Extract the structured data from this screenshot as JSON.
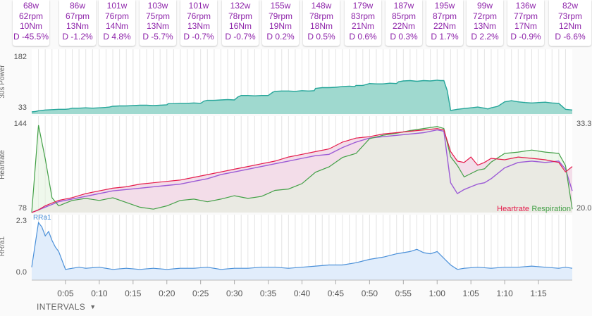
{
  "intervals": [
    {
      "power": "68w",
      "cadence": "62rpm",
      "torque": "10Nm",
      "decoupling": "D -45.5%"
    },
    {
      "power": "86w",
      "cadence": "67rpm",
      "torque": "13Nm",
      "decoupling": "D -1.2%"
    },
    {
      "power": "101w",
      "cadence": "76rpm",
      "torque": "14Nm",
      "decoupling": "D 4.8%"
    },
    {
      "power": "103w",
      "cadence": "75rpm",
      "torque": "13Nm",
      "decoupling": "D -5.7%"
    },
    {
      "power": "101w",
      "cadence": "76rpm",
      "torque": "13Nm",
      "decoupling": "D -0.7%"
    },
    {
      "power": "132w",
      "cadence": "78rpm",
      "torque": "16Nm",
      "decoupling": "D -0.7%"
    },
    {
      "power": "155w",
      "cadence": "79rpm",
      "torque": "19Nm",
      "decoupling": "D 0.2%"
    },
    {
      "power": "148w",
      "cadence": "78rpm",
      "torque": "18Nm",
      "decoupling": "D 0.5%"
    },
    {
      "power": "179w",
      "cadence": "83rpm",
      "torque": "21Nm",
      "decoupling": "D 0.6%"
    },
    {
      "power": "187w",
      "cadence": "85rpm",
      "torque": "22Nm",
      "decoupling": "D 0.3%"
    },
    {
      "power": "195w",
      "cadence": "87rpm",
      "torque": "22Nm",
      "decoupling": "D 1.7%"
    },
    {
      "power": "99w",
      "cadence": "72rpm",
      "torque": "13Nm",
      "decoupling": "D 2.2%"
    },
    {
      "power": "136w",
      "cadence": "77rpm",
      "torque": "17Nm",
      "decoupling": "D -0.9%"
    },
    {
      "power": "82w",
      "cadence": "73rpm",
      "torque": "12Nm",
      "decoupling": "D -6.6%"
    }
  ],
  "intervals_button": {
    "label": "INTERVALS"
  },
  "colors": {
    "card_text": "#8e24aa",
    "power_fill": "#80cbc4",
    "power_line": "#26a69a",
    "heartrate": "#e5194a",
    "respiration": "#43a047",
    "rr": "#4a90d9"
  },
  "chart_data": [
    {
      "type": "area",
      "ylabel": "30s Power",
      "yticks": [
        "182",
        "33"
      ],
      "ylim": [
        33,
        182
      ],
      "x_minutes": [
        0,
        0.5,
        1,
        2,
        3,
        4,
        5,
        5.5,
        6,
        7,
        8,
        9,
        10,
        11,
        11.5,
        12,
        13,
        14,
        15,
        16,
        17,
        18,
        19,
        20,
        20.2,
        21,
        22,
        23,
        24,
        25,
        25.5,
        26,
        27,
        28,
        29,
        30,
        30.5,
        31,
        32,
        33,
        34,
        35,
        35.7,
        36,
        37,
        38,
        39,
        40,
        41,
        41.8,
        42,
        43,
        44,
        45,
        46,
        47,
        47.8,
        48,
        49,
        50,
        51,
        52,
        53,
        54,
        54.3,
        55,
        56,
        57,
        58,
        59,
        60,
        60.5,
        61,
        61.5,
        62,
        63,
        64,
        65,
        66,
        67,
        67.5,
        68,
        69,
        70,
        71,
        72,
        73,
        74,
        75,
        76,
        77,
        78,
        79,
        80
      ],
      "values": [
        33,
        34,
        36,
        38,
        39,
        40,
        40,
        41,
        43,
        43,
        44,
        43,
        44,
        45,
        46,
        48,
        49,
        49,
        50,
        51,
        51,
        50,
        51,
        52,
        55,
        55,
        56,
        56,
        57,
        56,
        62,
        64,
        64,
        65,
        66,
        65,
        73,
        77,
        77,
        76,
        77,
        77,
        86,
        88,
        89,
        89,
        88,
        90,
        89,
        90,
        96,
        98,
        98,
        99,
        101,
        102,
        101,
        104,
        104,
        109,
        108,
        108,
        110,
        109,
        114,
        116,
        117,
        115,
        117,
        116,
        118,
        117,
        117,
        90,
        37,
        40,
        42,
        44,
        46,
        43,
        41,
        44,
        48,
        60,
        63,
        60,
        58,
        57,
        58,
        59,
        57,
        56,
        40,
        38
      ]
    },
    {
      "type": "line",
      "ylabel": "Heartrate",
      "yticks_left": [
        "144",
        "78"
      ],
      "yticks_right": [
        "33.3",
        "20.0"
      ],
      "ylim": [
        78,
        144
      ],
      "ylim_right": [
        20.0,
        33.3
      ],
      "legend": [
        "Heartrate",
        "Respiration"
      ],
      "legend_position": "bottom-right",
      "x_minutes": [
        0,
        1,
        2,
        3,
        4,
        5,
        6,
        8,
        10,
        12,
        14,
        16,
        18,
        20,
        22,
        24,
        26,
        28,
        30,
        32,
        34,
        36,
        38,
        40,
        42,
        44,
        46,
        48,
        50,
        52,
        54,
        56,
        58,
        60,
        61,
        62,
        63,
        64,
        65,
        66,
        67,
        68,
        70,
        72,
        74,
        76,
        78,
        79,
        80
      ],
      "series": [
        {
          "name": "Heartrate",
          "values": [
            78,
            80,
            83,
            85,
            87,
            88,
            89,
            92,
            94,
            96,
            97,
            99,
            100,
            101,
            102,
            104,
            106,
            108,
            110,
            112,
            114,
            116,
            119,
            121,
            123,
            125,
            130,
            133,
            134,
            136,
            137,
            138,
            139,
            140,
            139,
            123,
            116,
            115,
            119,
            113,
            115,
            118,
            117,
            119,
            118,
            117,
            115,
            108,
            112
          ]
        },
        {
          "values": [
            78,
            80,
            82,
            84,
            86,
            87,
            88,
            90,
            92,
            94,
            95,
            96,
            97,
            98,
            99,
            101,
            103,
            106,
            108,
            110,
            112,
            114,
            116,
            118,
            120,
            121,
            126,
            130,
            133,
            134,
            135,
            136,
            137,
            139,
            138,
            100,
            92,
            95,
            97,
            99,
            100,
            103,
            111,
            115,
            116,
            115,
            116,
            110,
            94
          ]
        },
        {
          "name": "Respiration",
          "values": [
            20.0,
            33.0,
            28.0,
            22.2,
            21.0,
            21.4,
            21.8,
            22.1,
            21.8,
            22.2,
            21.5,
            20.8,
            20.5,
            21.0,
            21.8,
            22.0,
            21.6,
            22.0,
            22.5,
            22.1,
            22.4,
            23.3,
            23.5,
            24.3,
            26.0,
            26.8,
            28.2,
            28.8,
            31.0,
            31.5,
            31.8,
            32.2,
            32.5,
            32.8,
            32.5,
            28.3,
            27.0,
            25.3,
            25.8,
            26.3,
            26.5,
            27.5,
            28.8,
            29.0,
            29.3,
            29.0,
            28.8,
            27.0,
            20.5
          ]
        }
      ]
    },
    {
      "type": "area",
      "ylabel": "RR/a1",
      "yticks": [
        "2.3",
        "0.0"
      ],
      "ylim": [
        0,
        2.3
      ],
      "legend": [
        "RRa1"
      ],
      "x_minutes": [
        0,
        0.5,
        1,
        1.5,
        2,
        2.5,
        3,
        3.5,
        4,
        5,
        6,
        7,
        8,
        10,
        12,
        14,
        16,
        18,
        20,
        22,
        24,
        26,
        28,
        30,
        32,
        34,
        36,
        38,
        40,
        42,
        44,
        46,
        48,
        50,
        52,
        54,
        56,
        57,
        58,
        59,
        60,
        61,
        62,
        63,
        64,
        66,
        68,
        70,
        72,
        74,
        76,
        78,
        79,
        80
      ],
      "values": [
        0.2,
        1.2,
        2.2,
        2.0,
        1.6,
        1.8,
        1.4,
        1.1,
        0.9,
        0.1,
        0.15,
        0.2,
        0.15,
        0.2,
        0.1,
        0.15,
        0.1,
        0.15,
        0.1,
        0.15,
        0.15,
        0.2,
        0.1,
        0.15,
        0.15,
        0.2,
        0.2,
        0.15,
        0.2,
        0.25,
        0.3,
        0.3,
        0.4,
        0.55,
        0.65,
        0.8,
        0.9,
        1.0,
        0.85,
        0.8,
        0.9,
        0.6,
        0.3,
        0.1,
        0.15,
        0.2,
        0.15,
        0.2,
        0.2,
        0.25,
        0.2,
        0.15,
        0.2,
        0.15
      ]
    }
  ],
  "x_axis": {
    "max_minutes": 80,
    "tick_labels": [
      "0:05",
      "0:10",
      "0:15",
      "0:20",
      "0:25",
      "0:30",
      "0:35",
      "0:40",
      "0:45",
      "0:50",
      "0:55",
      "1:00",
      "1:05",
      "1:10",
      "1:15"
    ]
  }
}
